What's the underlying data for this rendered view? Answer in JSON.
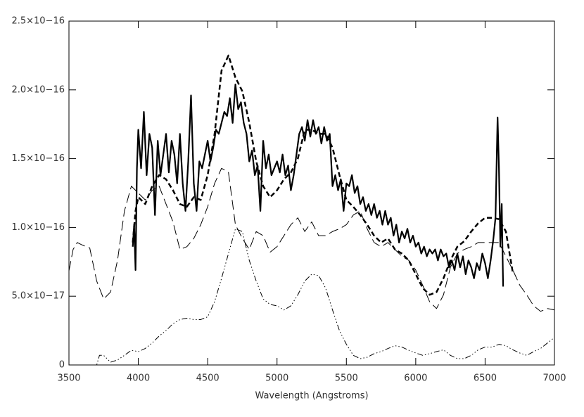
{
  "chart_data": {
    "type": "line",
    "x_label": "Wavelength (Angstroms)",
    "xlim": [
      3500,
      7000
    ],
    "xticks": [
      3500,
      4000,
      4500,
      5000,
      5500,
      6000,
      6500,
      7000
    ],
    "ylim": [
      0,
      2.5e-16
    ],
    "yticks": [
      {
        "value": 0,
        "label": "0"
      },
      {
        "value": 5e-17,
        "label": "5.0×10−17"
      },
      {
        "value": 1e-16,
        "label": "1.0×10−16"
      },
      {
        "value": 1.5e-16,
        "label": "1.5×10−16"
      },
      {
        "value": 2e-16,
        "label": "2.0×10−16"
      },
      {
        "value": 2.5e-16,
        "label": "2.5×10−16"
      }
    ],
    "grid": false,
    "series": [
      {
        "color": "#000000",
        "dash": "long-dash",
        "line_width": 1,
        "x": [
          3500,
          3530,
          3560,
          3600,
          3650,
          3700,
          3750,
          3800,
          3850,
          3900,
          3950,
          4000,
          4050,
          4100,
          4150,
          4200,
          4250,
          4300,
          4350,
          4400,
          4450,
          4500,
          4550,
          4600,
          4650,
          4700,
          4750,
          4800,
          4850,
          4900,
          4950,
          5000,
          5050,
          5100,
          5150,
          5200,
          5250,
          5300,
          5350,
          5400,
          5450,
          5500,
          5550,
          5600,
          5650,
          5700,
          5750,
          5800,
          5850,
          5900,
          5950,
          6000,
          6050,
          6100,
          6150,
          6200,
          6250,
          6300,
          6350,
          6400,
          6450,
          6500,
          6550,
          6600,
          6650,
          6700,
          6750,
          6800,
          6850,
          6900,
          6950,
          7000
        ],
        "values": [
          6.85e-17,
          8.4e-17,
          8.9e-17,
          8.7e-17,
          8.5e-17,
          6.1e-17,
          4.8e-17,
          5.3e-17,
          7.6e-17,
          1.12e-16,
          1.3e-16,
          1.25e-16,
          1.2e-16,
          1.27e-16,
          1.3e-16,
          1.17e-16,
          1.04e-16,
          8.4e-17,
          8.6e-17,
          9.2e-17,
          1.02e-16,
          1.15e-16,
          1.32e-16,
          1.43e-16,
          1.4e-16,
          1.02e-16,
          9.2e-17,
          8.4e-17,
          9.7e-17,
          9.4e-17,
          8.2e-17,
          8.6e-17,
          9.4e-17,
          1.02e-16,
          1.07e-16,
          9.7e-17,
          1.04e-16,
          9.4e-17,
          9.4e-17,
          9.7e-17,
          9.9e-17,
          1.02e-16,
          1.09e-16,
          1.12e-16,
          9.9e-17,
          8.9e-17,
          8.6e-17,
          8.9e-17,
          8.4e-17,
          7.9e-17,
          7.6e-17,
          6.9e-17,
          5.8e-17,
          4.6e-17,
          4.1e-17,
          5.1e-17,
          7.1e-17,
          8.1e-17,
          8.4e-17,
          8.6e-17,
          8.9e-17,
          8.9e-17,
          8.9e-17,
          8.9e-17,
          7.9e-17,
          6.9e-17,
          5.8e-17,
          5.1e-17,
          4.3e-17,
          3.9e-17,
          4.1e-17,
          4e-17
        ]
      },
      {
        "color": "#000000",
        "dash": "dash-dot-dot-dot",
        "line_width": 1,
        "x": [
          3500,
          3600,
          3700,
          3720,
          3750,
          3800,
          3850,
          3900,
          3950,
          4000,
          4050,
          4100,
          4150,
          4200,
          4250,
          4300,
          4350,
          4400,
          4450,
          4500,
          4550,
          4600,
          4650,
          4700,
          4750,
          4800,
          4850,
          4900,
          4950,
          5000,
          5050,
          5100,
          5150,
          5200,
          5250,
          5300,
          5350,
          5400,
          5450,
          5500,
          5550,
          5600,
          5650,
          5700,
          5750,
          5800,
          5850,
          5900,
          5950,
          6000,
          6050,
          6100,
          6150,
          6200,
          6250,
          6300,
          6350,
          6400,
          6450,
          6500,
          6550,
          6600,
          6650,
          6700,
          6750,
          6800,
          6850,
          6900,
          6950,
          7000
        ],
        "values": [
          0,
          0,
          0,
          7e-18,
          7e-18,
          2e-18,
          3.6e-18,
          7e-18,
          1.07e-17,
          9.7e-18,
          1.2e-17,
          1.6e-17,
          2.1e-17,
          2.5e-17,
          3e-17,
          3.3e-17,
          3.4e-17,
          3.3e-17,
          3.3e-17,
          3.5e-17,
          4.6e-17,
          6.3e-17,
          8.1e-17,
          9.9e-17,
          9.7e-17,
          7.6e-17,
          6.1e-17,
          4.8e-17,
          4.4e-17,
          4.3e-17,
          4e-17,
          4.3e-17,
          5.1e-17,
          6.1e-17,
          6.6e-17,
          6.5e-17,
          5.6e-17,
          4e-17,
          2.5e-17,
          1.5e-17,
          7e-18,
          4.6e-18,
          5.6e-18,
          8.2e-18,
          9.7e-18,
          1.2e-17,
          1.4e-17,
          1.3e-17,
          1.07e-17,
          8.7e-18,
          7e-18,
          8.2e-18,
          9.7e-18,
          1.1e-17,
          7e-18,
          4.6e-18,
          4.6e-18,
          7e-18,
          1.1e-17,
          1.3e-17,
          1.3e-17,
          1.5e-17,
          1.4e-17,
          1.1e-17,
          8.7e-18,
          7e-18,
          9.7e-18,
          1.2e-17,
          1.6e-17,
          2e-17
        ]
      },
      {
        "color": "#000000",
        "dash": "dash",
        "line_width": 2.5,
        "x": [
          3960,
          3980,
          4000,
          4050,
          4100,
          4150,
          4200,
          4250,
          4300,
          4350,
          4400,
          4450,
          4500,
          4550,
          4600,
          4650,
          4700,
          4750,
          4800,
          4850,
          4900,
          4950,
          5000,
          5050,
          5100,
          5150,
          5200,
          5250,
          5300,
          5350,
          5400,
          5450,
          5500,
          5550,
          5600,
          5650,
          5700,
          5750,
          5800,
          5850,
          5900,
          5950,
          6000,
          6050,
          6100,
          6150,
          6200,
          6250,
          6300,
          6350,
          6400,
          6450,
          6500,
          6550,
          6600,
          6650,
          6700
        ],
        "values": [
          8.9e-17,
          1.12e-16,
          1.22e-16,
          1.17e-16,
          1.3e-16,
          1.38e-16,
          1.35e-16,
          1.27e-16,
          1.17e-16,
          1.15e-16,
          1.22e-16,
          1.2e-16,
          1.38e-16,
          1.68e-16,
          2.14e-16,
          2.25e-16,
          2.09e-16,
          1.99e-16,
          1.76e-16,
          1.48e-16,
          1.3e-16,
          1.22e-16,
          1.27e-16,
          1.35e-16,
          1.4e-16,
          1.5e-16,
          1.71e-16,
          1.71e-16,
          1.68e-16,
          1.68e-16,
          1.58e-16,
          1.38e-16,
          1.2e-16,
          1.15e-16,
          1.09e-16,
          1.02e-16,
          9.4e-17,
          8.9e-17,
          9.2e-17,
          8.4e-17,
          8.1e-17,
          7.6e-17,
          6.6e-17,
          5.6e-17,
          5.1e-17,
          5.3e-17,
          6.3e-17,
          7.6e-17,
          8.6e-17,
          9e-17,
          9.7e-17,
          1.03e-16,
          1.07e-16,
          1.07e-16,
          1.06e-16,
          9.7e-17,
          6.7e-17
        ]
      },
      {
        "color": "#000000",
        "dash": "solid",
        "line_width": 2.2,
        "x": [
          3960,
          3970,
          3980,
          3990,
          4000,
          4020,
          4040,
          4060,
          4080,
          4100,
          4120,
          4140,
          4160,
          4180,
          4200,
          4220,
          4240,
          4260,
          4280,
          4300,
          4320,
          4340,
          4360,
          4380,
          4400,
          4420,
          4440,
          4460,
          4480,
          4500,
          4520,
          4540,
          4560,
          4580,
          4600,
          4620,
          4640,
          4660,
          4680,
          4700,
          4720,
          4740,
          4760,
          4780,
          4800,
          4820,
          4840,
          4860,
          4880,
          4900,
          4920,
          4940,
          4960,
          4980,
          5000,
          5020,
          5040,
          5060,
          5080,
          5100,
          5120,
          5140,
          5160,
          5180,
          5200,
          5220,
          5240,
          5260,
          5280,
          5300,
          5320,
          5340,
          5360,
          5380,
          5400,
          5420,
          5440,
          5460,
          5480,
          5500,
          5520,
          5540,
          5560,
          5580,
          5600,
          5620,
          5640,
          5660,
          5680,
          5700,
          5720,
          5740,
          5760,
          5780,
          5800,
          5820,
          5840,
          5860,
          5880,
          5900,
          5920,
          5940,
          5960,
          5980,
          6000,
          6020,
          6040,
          6060,
          6080,
          6100,
          6120,
          6140,
          6160,
          6180,
          6200,
          6220,
          6240,
          6260,
          6280,
          6300,
          6320,
          6340,
          6360,
          6380,
          6400,
          6420,
          6440,
          6460,
          6480,
          6500,
          6520,
          6540,
          6560,
          6575,
          6590,
          6600,
          6610,
          6620,
          6630
        ],
        "values": [
          8.6e-17,
          1.02e-16,
          6.9e-17,
          1.43e-16,
          1.71e-16,
          1.43e-16,
          1.84e-16,
          1.38e-16,
          1.68e-16,
          1.58e-16,
          1.09e-16,
          1.63e-16,
          1.38e-16,
          1.53e-16,
          1.68e-16,
          1.4e-16,
          1.63e-16,
          1.53e-16,
          1.32e-16,
          1.68e-16,
          1.32e-16,
          1.12e-16,
          1.48e-16,
          1.96e-16,
          1.32e-16,
          1.12e-16,
          1.48e-16,
          1.43e-16,
          1.53e-16,
          1.63e-16,
          1.48e-16,
          1.58e-16,
          1.71e-16,
          1.68e-16,
          1.76e-16,
          1.84e-16,
          1.81e-16,
          1.94e-16,
          1.76e-16,
          2.04e-16,
          1.86e-16,
          1.91e-16,
          1.76e-16,
          1.68e-16,
          1.48e-16,
          1.56e-16,
          1.38e-16,
          1.45e-16,
          1.12e-16,
          1.63e-16,
          1.43e-16,
          1.53e-16,
          1.38e-16,
          1.43e-16,
          1.48e-16,
          1.4e-16,
          1.53e-16,
          1.38e-16,
          1.45e-16,
          1.27e-16,
          1.38e-16,
          1.53e-16,
          1.68e-16,
          1.73e-16,
          1.63e-16,
          1.78e-16,
          1.66e-16,
          1.78e-16,
          1.68e-16,
          1.73e-16,
          1.61e-16,
          1.73e-16,
          1.63e-16,
          1.68e-16,
          1.3e-16,
          1.38e-16,
          1.27e-16,
          1.35e-16,
          1.12e-16,
          1.32e-16,
          1.3e-16,
          1.38e-16,
          1.25e-16,
          1.3e-16,
          1.17e-16,
          1.22e-16,
          1.12e-16,
          1.17e-16,
          1.09e-16,
          1.17e-16,
          1.07e-16,
          1.12e-16,
          1.02e-16,
          1.12e-16,
          1.02e-16,
          1.07e-16,
          9.4e-17,
          1.02e-16,
          8.9e-17,
          9.7e-17,
          9.2e-17,
          9.9e-17,
          8.9e-17,
          9.4e-17,
          8.6e-17,
          8.9e-17,
          8.1e-17,
          8.6e-17,
          7.9e-17,
          8.4e-17,
          8.1e-17,
          8.4e-17,
          7.6e-17,
          8.4e-17,
          7.9e-17,
          8.1e-17,
          7.1e-17,
          7.6e-17,
          6.9e-17,
          8.1e-17,
          7.1e-17,
          7.9e-17,
          6.6e-17,
          7.6e-17,
          7.1e-17,
          6.3e-17,
          7.4e-17,
          6.9e-17,
          8.1e-17,
          7.4e-17,
          6.3e-17,
          7.6e-17,
          9.2e-17,
          1.07e-16,
          1.8e-16,
          1.43e-16,
          8.6e-17,
          1.17e-16,
          5.7e-17
        ]
      }
    ]
  }
}
